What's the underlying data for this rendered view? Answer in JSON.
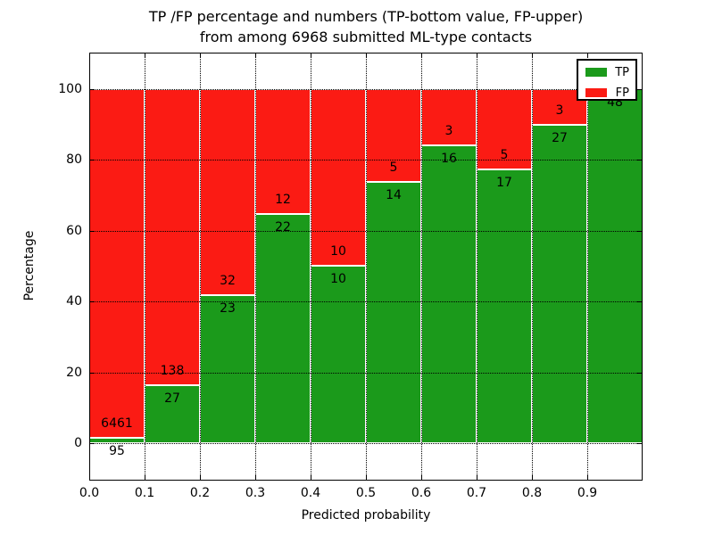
{
  "title": {
    "line1": "TP /FP percentage and numbers (TP-bottom value, FP-upper)",
    "line2": "from among 6968 submitted ML-type contacts"
  },
  "legend": {
    "items": [
      {
        "label": "TP",
        "color": "#1b9a1b"
      },
      {
        "label": "FP",
        "color": "#fb1b14"
      }
    ]
  },
  "colors": {
    "tp": "#1b9a1b",
    "fp": "#fb1b14",
    "grid": "#000000",
    "frame": "#000000",
    "background": "#ffffff",
    "bar_edge": "#ffffff"
  },
  "chart_data": {
    "type": "bar",
    "stacked": true,
    "title": "TP /FP percentage and numbers (TP-bottom value, FP-upper) from among 6968 submitted ML-type contacts",
    "xlabel": "Predicted probability",
    "ylabel": "Percentage",
    "xlim": [
      0.0,
      1.0
    ],
    "ylim": [
      -10.6,
      110.3
    ],
    "x_ticks": [
      "0.0",
      "0.1",
      "0.2",
      "0.3",
      "0.4",
      "0.5",
      "0.6",
      "0.7",
      "0.8",
      "0.9"
    ],
    "y_ticks": [
      0,
      20,
      40,
      60,
      80,
      100
    ],
    "grid": true,
    "legend_position": "upper right",
    "total_contacts": 6968,
    "bin_width": 0.1,
    "series": [
      {
        "name": "TP",
        "values_pct": [
          1.449,
          16.364,
          41.818,
          64.706,
          50.0,
          73.684,
          84.211,
          77.273,
          90.0,
          100.0
        ]
      },
      {
        "name": "FP",
        "values_pct": [
          98.551,
          83.636,
          58.182,
          35.294,
          50.0,
          26.316,
          15.789,
          22.727,
          10.0,
          0.0
        ]
      }
    ],
    "bins": [
      {
        "x_start": 0.0,
        "x_end": 0.1,
        "tp_count": 95,
        "fp_count": 6461,
        "tp_pct": 1.449
      },
      {
        "x_start": 0.1,
        "x_end": 0.2,
        "tp_count": 27,
        "fp_count": 138,
        "tp_pct": 16.364
      },
      {
        "x_start": 0.2,
        "x_end": 0.3,
        "tp_count": 23,
        "fp_count": 32,
        "tp_pct": 41.818
      },
      {
        "x_start": 0.3,
        "x_end": 0.4,
        "tp_count": 22,
        "fp_count": 12,
        "tp_pct": 64.706
      },
      {
        "x_start": 0.4,
        "x_end": 0.5,
        "tp_count": 10,
        "fp_count": 10,
        "tp_pct": 50.0
      },
      {
        "x_start": 0.5,
        "x_end": 0.6,
        "tp_count": 14,
        "fp_count": 5,
        "tp_pct": 73.684
      },
      {
        "x_start": 0.6,
        "x_end": 0.7,
        "tp_count": 16,
        "fp_count": 3,
        "tp_pct": 84.211
      },
      {
        "x_start": 0.7,
        "x_end": 0.8,
        "tp_count": 17,
        "fp_count": 5,
        "tp_pct": 77.273
      },
      {
        "x_start": 0.8,
        "x_end": 0.9,
        "tp_count": 27,
        "fp_count": 3,
        "tp_pct": 90.0
      },
      {
        "x_start": 0.9,
        "x_end": 1.0,
        "tp_count": 48,
        "fp_count": 0,
        "tp_pct": 100.0
      }
    ]
  }
}
